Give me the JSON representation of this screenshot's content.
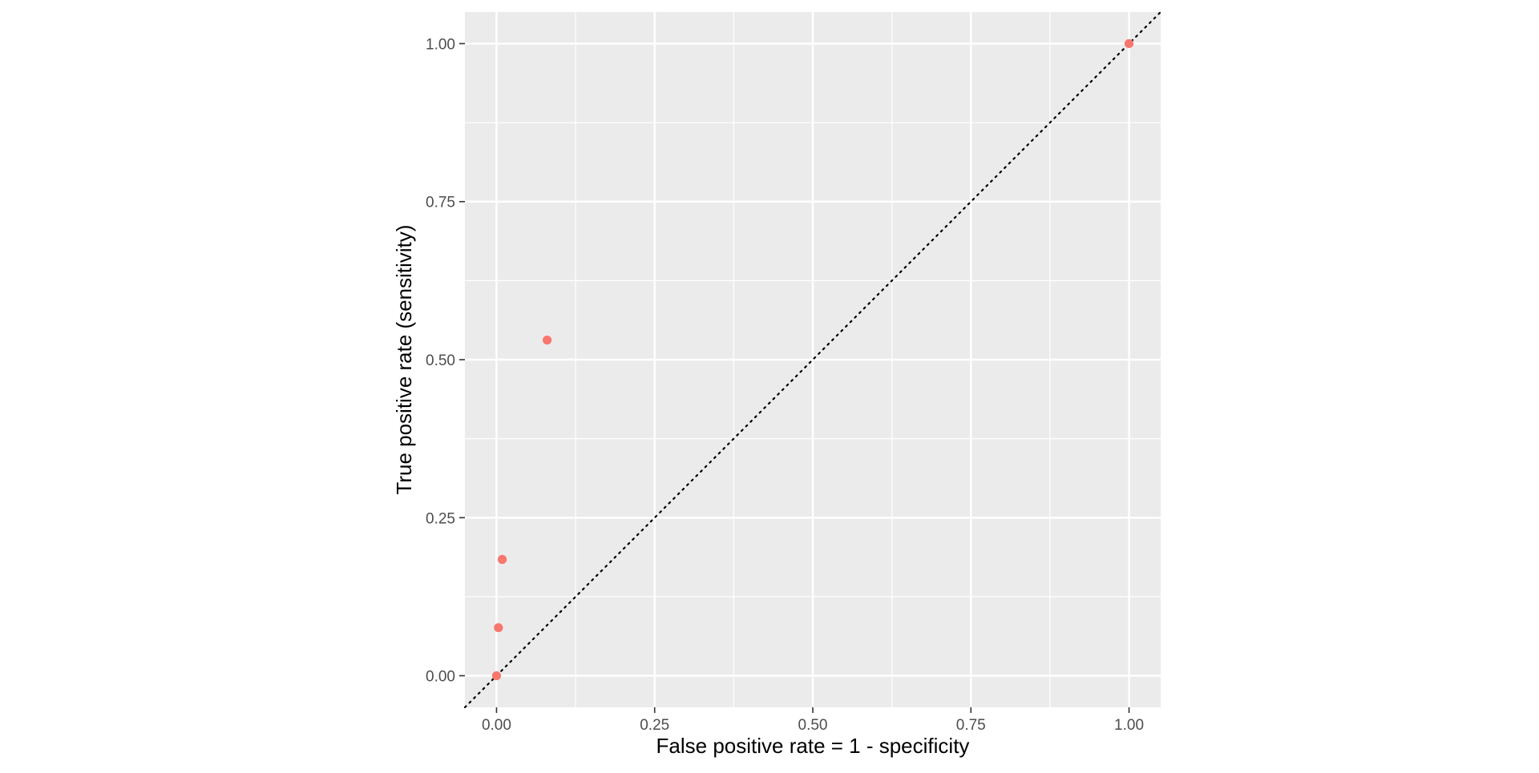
{
  "chart_data": {
    "type": "scatter",
    "title": "",
    "xlabel": "False positive rate = 1 - specificity",
    "ylabel": "True positive rate (sensitivity)",
    "xlim": [
      -0.05,
      1.05
    ],
    "ylim": [
      -0.05,
      1.05
    ],
    "xticks": [
      0,
      0.25,
      0.5,
      0.75,
      1
    ],
    "yticks": [
      0,
      0.25,
      0.5,
      0.75,
      1
    ],
    "xtick_labels": [
      "0.00",
      "0.25",
      "0.50",
      "0.75",
      "1.00"
    ],
    "ytick_labels": [
      "0.00",
      "0.25",
      "0.50",
      "0.75",
      "1.00"
    ],
    "grid": true,
    "legend": "none",
    "reference_line": {
      "type": "identity",
      "style": "dotted"
    },
    "point_color": "#F8766D",
    "panel_background": "#EBEBEB",
    "grid_color": "#FFFFFF",
    "points": [
      {
        "x": 0.0,
        "y": 0.0
      },
      {
        "x": 0.003,
        "y": 0.076
      },
      {
        "x": 0.009,
        "y": 0.184
      },
      {
        "x": 0.08,
        "y": 0.531
      },
      {
        "x": 1.0,
        "y": 1.0
      }
    ]
  }
}
